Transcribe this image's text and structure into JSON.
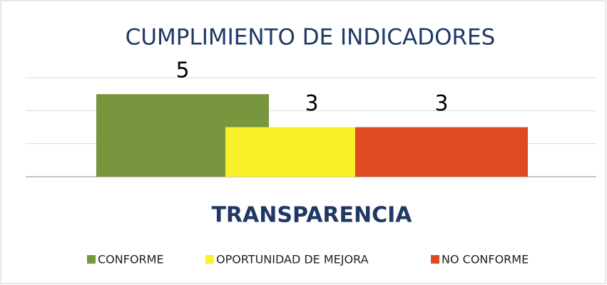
{
  "chart_data": {
    "type": "bar",
    "title": "CUMPLIMIENTO DE INDICADORES",
    "categories": [
      "TRANSPARENCIA"
    ],
    "series": [
      {
        "name": "CONFORME",
        "color": "#78963d",
        "values": [
          5
        ]
      },
      {
        "name": "OPORTUNIDAD DE MEJORA",
        "color": "#fbf12a",
        "values": [
          3
        ]
      },
      {
        "name": "NO CONFORME",
        "color": "#e04a20",
        "values": [
          3
        ]
      }
    ],
    "ylim": [
      0,
      6
    ],
    "yticks": [
      0,
      2,
      4,
      6
    ],
    "grid": true
  }
}
